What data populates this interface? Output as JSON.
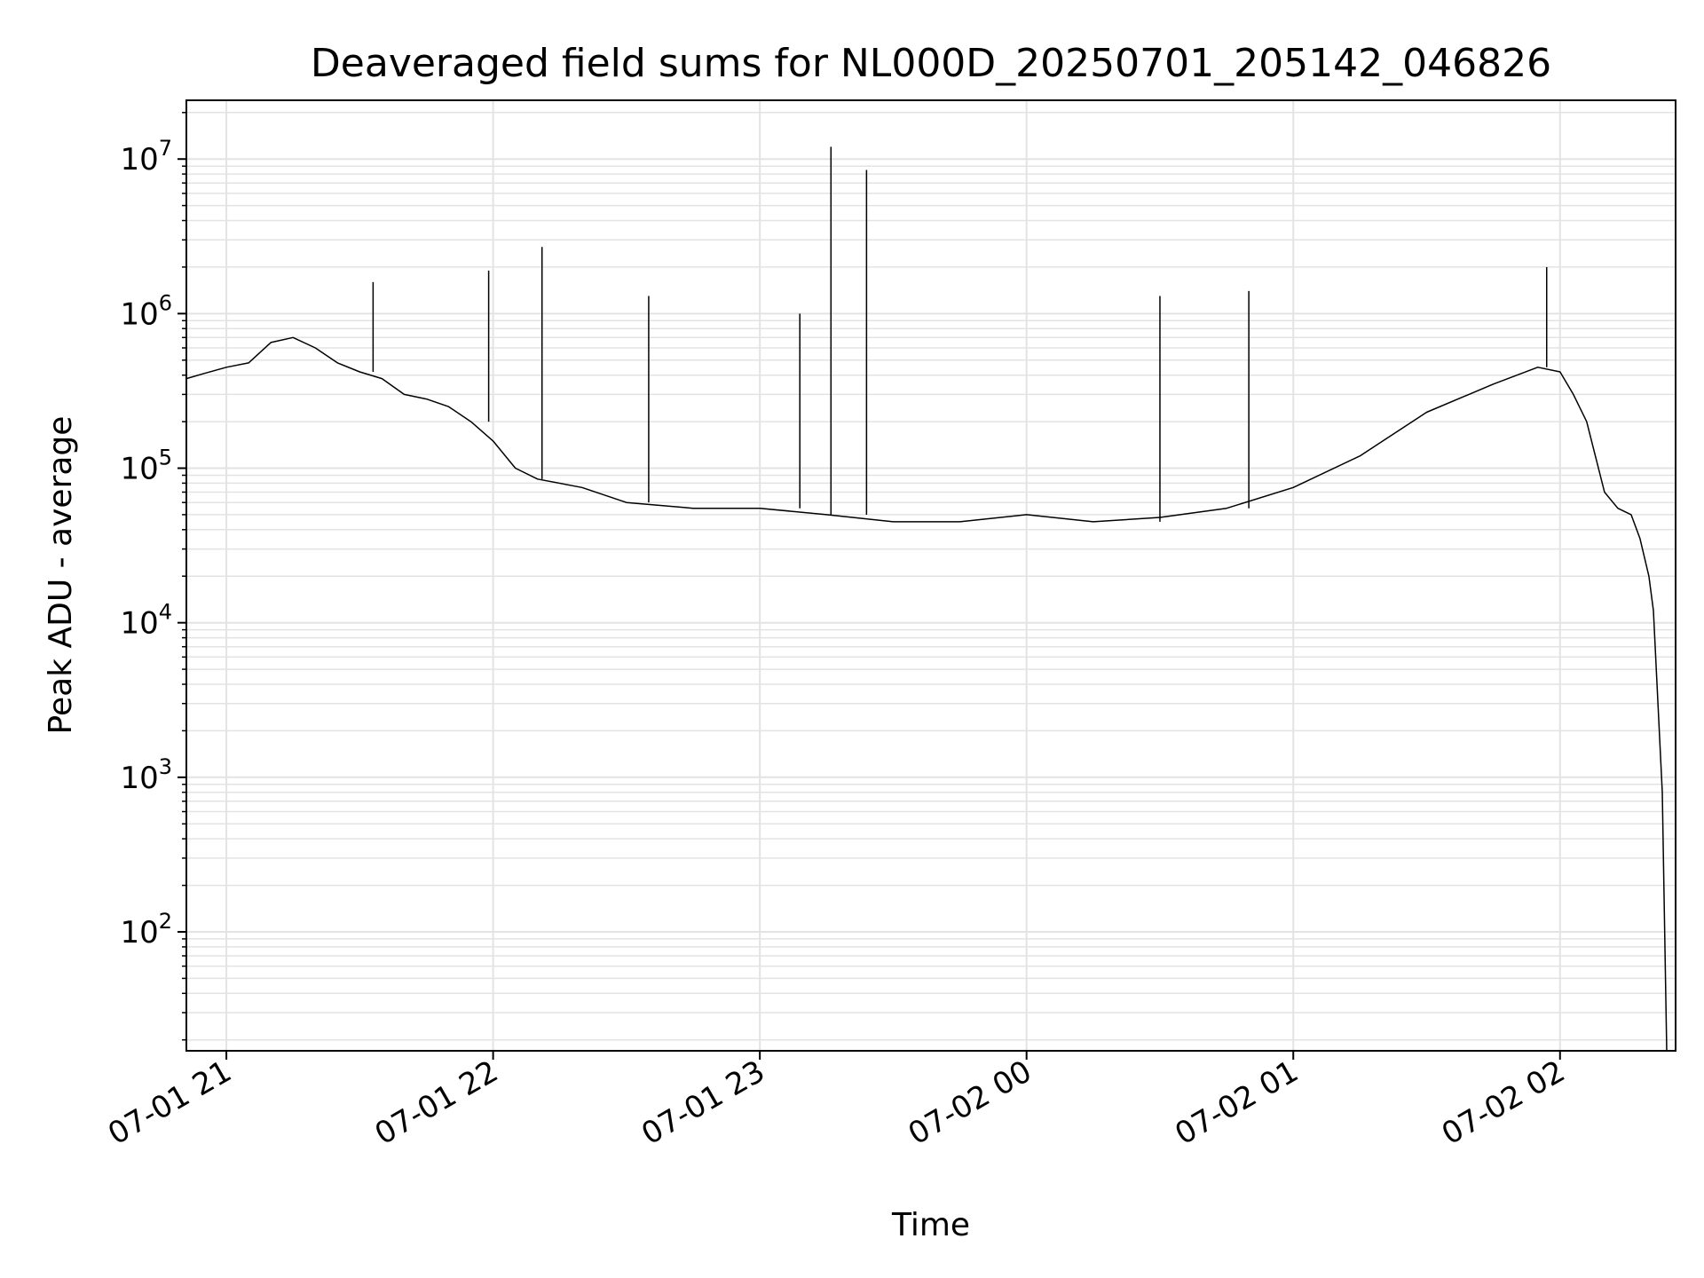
{
  "chart_data": {
    "type": "line",
    "title": "Deaveraged field sums for NL000D_20250701_205142_046826",
    "xlabel": "Time",
    "ylabel": "Peak ADU - average",
    "yscale": "log",
    "grid": true,
    "legend": "none",
    "line_color": "#000000",
    "grid_color": "#e3e3e3",
    "x_ticks": [
      "07-01 21",
      "07-01 22",
      "07-01 23",
      "07-02 00",
      "07-02 01",
      "07-02 02"
    ],
    "y_ticks": [
      "10^2",
      "10^3",
      "10^4",
      "10^5",
      "10^6",
      "10^7"
    ],
    "xlim": [
      "2025-07-01T20:51:00",
      "2025-07-02T02:26:00"
    ],
    "ylim": [
      17,
      24000000
    ],
    "series": [
      {
        "x": [
          "2025-07-01T20:51:00",
          "2025-07-01T20:55:00",
          "2025-07-01T21:00:00",
          "2025-07-01T21:05:00",
          "2025-07-01T21:10:00",
          "2025-07-01T21:15:00",
          "2025-07-01T21:20:00",
          "2025-07-01T21:25:00",
          "2025-07-01T21:30:00",
          "2025-07-01T21:35:00",
          "2025-07-01T21:40:00",
          "2025-07-01T21:45:00",
          "2025-07-01T21:50:00",
          "2025-07-01T21:55:00",
          "2025-07-01T22:00:00",
          "2025-07-01T22:05:00",
          "2025-07-01T22:10:00",
          "2025-07-01T22:20:00",
          "2025-07-01T22:30:00",
          "2025-07-01T22:45:00",
          "2025-07-01T23:00:00",
          "2025-07-01T23:15:00",
          "2025-07-01T23:30:00",
          "2025-07-01T23:45:00",
          "2025-07-02T00:00:00",
          "2025-07-02T00:15:00",
          "2025-07-02T00:30:00",
          "2025-07-02T00:45:00",
          "2025-07-02T01:00:00",
          "2025-07-02T01:15:00",
          "2025-07-02T01:30:00",
          "2025-07-02T01:45:00",
          "2025-07-02T01:55:00",
          "2025-07-02T02:00:00",
          "2025-07-02T02:03:00",
          "2025-07-02T02:06:00",
          "2025-07-02T02:10:00",
          "2025-07-02T02:13:00",
          "2025-07-02T02:16:00",
          "2025-07-02T02:18:00",
          "2025-07-02T02:20:00",
          "2025-07-02T02:21:00",
          "2025-07-02T02:23:00",
          "2025-07-02T02:24:00"
        ],
        "y": [
          380000,
          410000,
          450000,
          480000,
          650000,
          700000,
          600000,
          480000,
          420000,
          380000,
          300000,
          280000,
          250000,
          200000,
          150000,
          100000,
          85000,
          75000,
          60000,
          55000,
          55000,
          50000,
          45000,
          45000,
          50000,
          45000,
          48000,
          55000,
          75000,
          120000,
          230000,
          350000,
          450000,
          420000,
          300000,
          200000,
          70000,
          55000,
          50000,
          35000,
          20000,
          12000,
          800,
          17
        ]
      }
    ],
    "spikes": [
      {
        "x": "2025-07-01T21:33:00",
        "y": 1600000
      },
      {
        "x": "2025-07-01T21:59:00",
        "y": 1900000
      },
      {
        "x": "2025-07-01T22:11:00",
        "y": 2700000
      },
      {
        "x": "2025-07-01T22:35:00",
        "y": 1300000
      },
      {
        "x": "2025-07-01T23:09:00",
        "y": 1000000
      },
      {
        "x": "2025-07-01T23:16:00",
        "y": 12000000
      },
      {
        "x": "2025-07-01T23:24:00",
        "y": 8500000
      },
      {
        "x": "2025-07-02T00:30:00",
        "y": 1300000
      },
      {
        "x": "2025-07-02T00:50:00",
        "y": 1400000
      },
      {
        "x": "2025-07-02T01:57:00",
        "y": 2000000
      }
    ]
  }
}
